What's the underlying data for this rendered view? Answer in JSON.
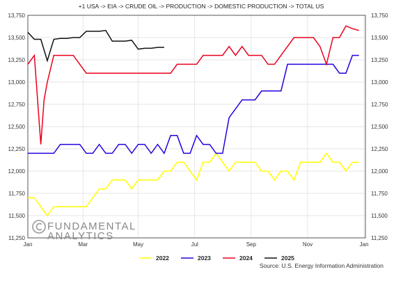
{
  "chart_data": {
    "type": "line",
    "title": "+1 USA -> EIA -> CRUDE OIL -> PRODUCTION -> DOMESTIC PRODUCTION -> TOTAL US",
    "xlabel": "",
    "ylabel": "",
    "x_unit": "week_of_year",
    "xlim": [
      1,
      53
    ],
    "ylim": [
      11250,
      13750
    ],
    "y_ticks": [
      11250,
      11500,
      11750,
      12000,
      12250,
      12500,
      12750,
      13000,
      13250,
      13500,
      13750
    ],
    "x_ticks": [
      {
        "label": "Jan",
        "week": 1
      },
      {
        "label": "Mar",
        "week": 9.5
      },
      {
        "label": "May",
        "week": 18
      },
      {
        "label": "Jul",
        "week": 26.7
      },
      {
        "label": "Sep",
        "week": 35.4
      },
      {
        "label": "Nov",
        "week": 44.1
      },
      {
        "label": "Jan",
        "week": 52.8
      }
    ],
    "grid": true,
    "legend_position": "bottom",
    "series": [
      {
        "name": "2022",
        "color": "#ffff00",
        "x": [
          1,
          2,
          3,
          4,
          5,
          6,
          7,
          8,
          9,
          10,
          11,
          12,
          13,
          14,
          15,
          16,
          17,
          18,
          19,
          20,
          21,
          22,
          23,
          24,
          25,
          26,
          27,
          28,
          29,
          30,
          31,
          32,
          33,
          34,
          35,
          36,
          37,
          38,
          39,
          40,
          41,
          42,
          43,
          44,
          45,
          46,
          47,
          48,
          49,
          50,
          51,
          52
        ],
        "values": [
          11700,
          11700,
          11600,
          11500,
          11600,
          11600,
          11600,
          11600,
          11600,
          11600,
          11700,
          11800,
          11800,
          11900,
          11900,
          11900,
          11800,
          11900,
          11900,
          11900,
          11900,
          12000,
          12000,
          12100,
          12100,
          12000,
          11900,
          12100,
          12100,
          12200,
          12100,
          12000,
          12100,
          12100,
          12100,
          12100,
          12000,
          12000,
          11900,
          12000,
          12000,
          11900,
          12100,
          12100,
          12100,
          12100,
          12200,
          12100,
          12100,
          12000,
          12100,
          12100
        ]
      },
      {
        "name": "2023",
        "color": "#2200dd",
        "x": [
          1,
          2,
          3,
          4,
          5,
          6,
          7,
          8,
          9,
          10,
          11,
          12,
          13,
          14,
          15,
          16,
          17,
          18,
          19,
          20,
          21,
          22,
          23,
          24,
          25,
          26,
          27,
          28,
          29,
          30,
          31,
          32,
          33,
          34,
          35,
          36,
          37,
          38,
          39,
          40,
          41,
          42,
          43,
          44,
          45,
          46,
          47,
          48,
          49,
          50,
          51,
          52
        ],
        "values": [
          12200,
          12200,
          12200,
          12200,
          12200,
          12300,
          12300,
          12300,
          12300,
          12200,
          12200,
          12300,
          12200,
          12200,
          12300,
          12300,
          12200,
          12300,
          12300,
          12200,
          12300,
          12200,
          12400,
          12400,
          12200,
          12200,
          12400,
          12300,
          12300,
          12200,
          12200,
          12600,
          12700,
          12800,
          12800,
          12800,
          12900,
          12900,
          12900,
          12900,
          13200,
          13200,
          13200,
          13200,
          13200,
          13200,
          13200,
          13200,
          13100,
          13100,
          13300,
          13300
        ]
      },
      {
        "name": "2024",
        "color": "#e8001c",
        "x": [
          1,
          2,
          2.5,
          3,
          3.5,
          4,
          5,
          6,
          7,
          8,
          9,
          10,
          11,
          12,
          13,
          14,
          15,
          16,
          17,
          18,
          19,
          20,
          21,
          22,
          23,
          24,
          25,
          26,
          27,
          28,
          29,
          30,
          31,
          32,
          33,
          34,
          35,
          36,
          37,
          38,
          39,
          40,
          41,
          42,
          43,
          44,
          45,
          46,
          47,
          48,
          49,
          50,
          51,
          52
        ],
        "values": [
          13200,
          13300,
          12800,
          12300,
          12800,
          13000,
          13300,
          13300,
          13300,
          13300,
          13200,
          13100,
          13100,
          13100,
          13100,
          13100,
          13100,
          13100,
          13100,
          13100,
          13100,
          13100,
          13100,
          13100,
          13100,
          13200,
          13200,
          13200,
          13200,
          13300,
          13300,
          13300,
          13300,
          13400,
          13300,
          13400,
          13300,
          13300,
          13300,
          13200,
          13200,
          13300,
          13400,
          13500,
          13500,
          13500,
          13500,
          13400,
          13200,
          13500,
          13500,
          13630,
          13600,
          13580
        ]
      },
      {
        "name": "2025",
        "color": "#111111",
        "x": [
          1,
          2,
          3,
          4,
          5,
          6,
          7,
          8,
          9,
          10,
          11,
          12,
          13,
          14,
          15,
          16,
          17,
          18,
          19,
          20,
          21,
          22
        ],
        "values": [
          13560,
          13480,
          13480,
          13240,
          13480,
          13490,
          13490,
          13500,
          13500,
          13570,
          13570,
          13570,
          13580,
          13460,
          13460,
          13460,
          13470,
          13370,
          13380,
          13380,
          13390,
          13390
        ]
      }
    ],
    "source": "Source: U.S. Energy Information Administration"
  },
  "logo": {
    "line1": "FUNDAMENTAL",
    "line2": "ANALYTICS"
  }
}
